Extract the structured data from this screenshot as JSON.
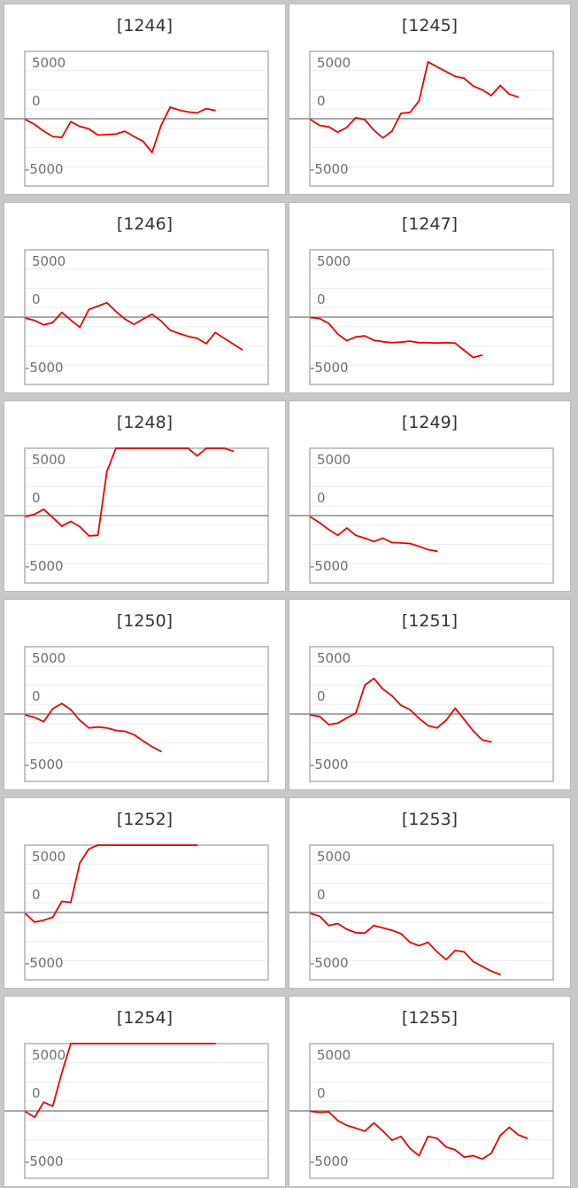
{
  "chart_data": [
    {
      "type": "line",
      "title": "[1244]",
      "ylim": [
        -7000,
        7000
      ],
      "yticks": [
        "5000",
        "0",
        "-5000"
      ],
      "colors": {
        "line": "#ee0000"
      },
      "y": [
        -100,
        -600,
        -1300,
        -1850,
        -1950,
        -300,
        -800,
        -1050,
        -1700,
        -1650,
        -1600,
        -1300,
        -1850,
        -2350,
        -3500,
        -700,
        1200,
        900,
        700,
        600,
        1050,
        850
      ]
    },
    {
      "type": "line",
      "title": "[1245]",
      "ylim": [
        -7000,
        7000
      ],
      "yticks": [
        "5000",
        "0",
        "-5000"
      ],
      "colors": {
        "line": "#ee0000"
      },
      "y": [
        -100,
        -700,
        -850,
        -1400,
        -900,
        100,
        -100,
        -1200,
        -2000,
        -1300,
        550,
        650,
        1850,
        5900,
        5400,
        4900,
        4400,
        4200,
        3400,
        3000,
        2400,
        3450,
        2550,
        2250
      ]
    },
    {
      "type": "line",
      "title": "[1246]",
      "ylim": [
        -7000,
        7000
      ],
      "yticks": [
        "5000",
        "0",
        "-5000"
      ],
      "colors": {
        "line": "#ee0000"
      },
      "y": [
        -100,
        -350,
        -800,
        -550,
        500,
        -300,
        -1050,
        800,
        1150,
        1500,
        600,
        -200,
        -750,
        -200,
        300,
        -400,
        -1350,
        -1700,
        -2000,
        -2200,
        -2750,
        -1600,
        -2200,
        -2800,
        -3400
      ]
    },
    {
      "type": "line",
      "title": "[1247]",
      "ylim": [
        -7000,
        7000
      ],
      "yticks": [
        "5000",
        "0",
        "-5000"
      ],
      "colors": {
        "line": "#ee0000"
      },
      "y": [
        -50,
        -150,
        -650,
        -1750,
        -2450,
        -2050,
        -1950,
        -2400,
        -2550,
        -2650,
        -2600,
        -2500,
        -2650,
        -2650,
        -2700,
        -2650,
        -2700,
        -3450,
        -4200,
        -3950
      ]
    },
    {
      "type": "line",
      "title": "[1248]",
      "ylim": [
        -7000,
        7000
      ],
      "yticks": [
        "5000",
        "0",
        "-5000"
      ],
      "colors": {
        "line": "#ee0000"
      },
      "y": [
        -100,
        150,
        650,
        -200,
        -1100,
        -600,
        -1150,
        -2100,
        -2050,
        4600,
        7000,
        7000,
        7000,
        7000,
        7000,
        7000,
        7000,
        7000,
        7000,
        6200,
        7000,
        7000,
        7000,
        6700
      ]
    },
    {
      "type": "line",
      "title": "[1249]",
      "ylim": [
        -7000,
        7000
      ],
      "yticks": [
        "5000",
        "0",
        "-5000"
      ],
      "colors": {
        "line": "#ee0000"
      },
      "y": [
        -150,
        -750,
        -1450,
        -2050,
        -1300,
        -2050,
        -2350,
        -2700,
        -2350,
        -2800,
        -2850,
        -2900,
        -3200,
        -3550,
        -3700
      ]
    },
    {
      "type": "line",
      "title": "[1250]",
      "ylim": [
        -7000,
        7000
      ],
      "yticks": [
        "5000",
        "0",
        "-5000"
      ],
      "colors": {
        "line": "#ee0000"
      },
      "y": [
        -100,
        -350,
        -800,
        550,
        1100,
        450,
        -650,
        -1450,
        -1350,
        -1450,
        -1700,
        -1800,
        -2150,
        -2800,
        -3400,
        -3900
      ]
    },
    {
      "type": "line",
      "title": "[1251]",
      "ylim": [
        -7000,
        7000
      ],
      "yticks": [
        "5000",
        "0",
        "-5000"
      ],
      "colors": {
        "line": "#ee0000"
      },
      "y": [
        -100,
        -250,
        -1100,
        -950,
        -400,
        100,
        3000,
        3700,
        2600,
        1900,
        900,
        450,
        -450,
        -1200,
        -1450,
        -650,
        600,
        -550,
        -1750,
        -2700,
        -2900
      ]
    },
    {
      "type": "line",
      "title": "[1252]",
      "ylim": [
        -7000,
        7000
      ],
      "yticks": [
        "5000",
        "0",
        "-5000"
      ],
      "colors": {
        "line": "#ee0000"
      },
      "y": [
        -150,
        -1000,
        -800,
        -500,
        1150,
        1050,
        5150,
        6600,
        7000,
        7000,
        7000,
        7000,
        7000,
        7000,
        7000,
        7000,
        7000,
        7000,
        7000,
        7000
      ]
    },
    {
      "type": "line",
      "title": "[1253]",
      "ylim": [
        -7000,
        7000
      ],
      "yticks": [
        "5000",
        "0",
        "-5000"
      ],
      "colors": {
        "line": "#ee0000"
      },
      "y": [
        -100,
        -400,
        -1350,
        -1150,
        -1750,
        -2100,
        -2150,
        -1350,
        -1600,
        -1850,
        -2200,
        -3100,
        -3450,
        -3100,
        -4100,
        -4900,
        -3950,
        -4100,
        -5100,
        -5600,
        -6100,
        -6450
      ]
    },
    {
      "type": "line",
      "title": "[1254]",
      "ylim": [
        -7000,
        7000
      ],
      "yticks": [
        "5000",
        "0",
        "-5000"
      ],
      "colors": {
        "line": "#ee0000"
      },
      "y": [
        -100,
        -650,
        900,
        500,
        3950,
        7000,
        7000,
        7000,
        7000,
        7000,
        7000,
        7000,
        7000,
        7000,
        7000,
        7000,
        7000,
        7000,
        7000,
        7000,
        7000,
        7000
      ]
    },
    {
      "type": "line",
      "title": "[1255]",
      "ylim": [
        -7000,
        7000
      ],
      "yticks": [
        "5000",
        "0",
        "-5000"
      ],
      "colors": {
        "line": "#ee0000"
      },
      "y": [
        -50,
        -150,
        -100,
        -1000,
        -1500,
        -1800,
        -2100,
        -1250,
        -2100,
        -3050,
        -2650,
        -3900,
        -4650,
        -2650,
        -2850,
        -3750,
        -4050,
        -4800,
        -4650,
        -5000,
        -4400,
        -2550,
        -1700,
        -2500,
        -2850
      ]
    }
  ]
}
